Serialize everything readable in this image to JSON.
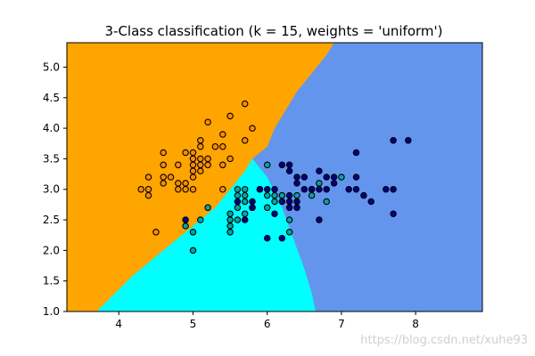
{
  "chart_data": {
    "type": "scatter",
    "title": "3-Class classification (k = 15, weights = 'uniform')",
    "xlabel": "",
    "ylabel": "",
    "xlim": [
      3.3,
      8.9
    ],
    "ylim": [
      1.0,
      5.4
    ],
    "xticks": [
      4,
      5,
      6,
      7,
      8
    ],
    "yticks": [
      1.0,
      1.5,
      2.0,
      2.5,
      3.0,
      3.5,
      4.0,
      4.5,
      5.0
    ],
    "ytick_labels": [
      "1.0",
      "1.5",
      "2.0",
      "2.5",
      "3.0",
      "3.5",
      "4.0",
      "4.5",
      "5.0"
    ],
    "grid": false,
    "background": "decision regions of three classes",
    "region_colors": [
      "#FFA500",
      "#00FFFF",
      "#6495ED"
    ],
    "point_colors": [
      "#FF8C00",
      "#00A7A7",
      "#00008B"
    ],
    "series": [
      {
        "region_color": "#FFA500",
        "point_color": "#FF8C00",
        "points": [
          [
            4.3,
            3.0
          ],
          [
            4.4,
            2.9
          ],
          [
            4.4,
            3.0
          ],
          [
            4.4,
            3.2
          ],
          [
            4.5,
            2.3
          ],
          [
            4.6,
            3.1
          ],
          [
            4.6,
            3.2
          ],
          [
            4.6,
            3.4
          ],
          [
            4.6,
            3.6
          ],
          [
            4.7,
            3.2
          ],
          [
            4.8,
            3.0
          ],
          [
            4.8,
            3.1
          ],
          [
            4.8,
            3.4
          ],
          [
            4.9,
            3.0
          ],
          [
            4.9,
            3.1
          ],
          [
            4.9,
            3.6
          ],
          [
            5.0,
            3.0
          ],
          [
            5.0,
            3.2
          ],
          [
            5.0,
            3.3
          ],
          [
            5.0,
            3.4
          ],
          [
            5.0,
            3.5
          ],
          [
            5.0,
            3.6
          ],
          [
            5.1,
            3.3
          ],
          [
            5.1,
            3.4
          ],
          [
            5.1,
            3.5
          ],
          [
            5.1,
            3.7
          ],
          [
            5.1,
            3.8
          ],
          [
            5.2,
            3.4
          ],
          [
            5.2,
            3.5
          ],
          [
            5.2,
            4.1
          ],
          [
            5.3,
            3.7
          ],
          [
            5.4,
            3.4
          ],
          [
            5.4,
            3.7
          ],
          [
            5.4,
            3.9
          ],
          [
            5.5,
            3.5
          ],
          [
            5.5,
            4.2
          ],
          [
            5.7,
            3.8
          ],
          [
            5.7,
            4.4
          ],
          [
            5.8,
            4.0
          ],
          [
            5.4,
            3.0
          ]
        ]
      },
      {
        "region_color": "#00FFFF",
        "point_color": "#00A7A7",
        "points": [
          [
            4.9,
            2.4
          ],
          [
            5.0,
            2.0
          ],
          [
            5.0,
            2.3
          ],
          [
            5.1,
            2.5
          ],
          [
            5.2,
            2.7
          ],
          [
            5.5,
            2.3
          ],
          [
            5.5,
            2.4
          ],
          [
            5.5,
            2.5
          ],
          [
            5.5,
            2.6
          ],
          [
            5.6,
            2.5
          ],
          [
            5.6,
            2.7
          ],
          [
            5.6,
            2.9
          ],
          [
            5.6,
            3.0
          ],
          [
            5.7,
            2.6
          ],
          [
            5.7,
            2.8
          ],
          [
            5.7,
            2.9
          ],
          [
            5.7,
            3.0
          ],
          [
            5.8,
            2.7
          ],
          [
            6.0,
            2.9
          ],
          [
            6.0,
            2.7
          ],
          [
            6.0,
            3.4
          ],
          [
            6.1,
            2.8
          ],
          [
            6.1,
            2.9
          ],
          [
            6.2,
            2.9
          ],
          [
            6.3,
            2.3
          ],
          [
            6.3,
            2.5
          ],
          [
            6.4,
            2.9
          ],
          [
            6.6,
            2.9
          ],
          [
            6.6,
            3.0
          ],
          [
            6.7,
            3.1
          ],
          [
            6.8,
            2.8
          ],
          [
            7.0,
            3.2
          ],
          [
            5.9,
            3.0
          ]
        ]
      },
      {
        "region_color": "#6495ED",
        "point_color": "#00008B",
        "points": [
          [
            4.9,
            2.5
          ],
          [
            5.6,
            2.8
          ],
          [
            5.7,
            2.5
          ],
          [
            5.8,
            2.7
          ],
          [
            5.8,
            2.8
          ],
          [
            5.9,
            3.0
          ],
          [
            6.0,
            2.2
          ],
          [
            6.0,
            3.0
          ],
          [
            6.1,
            3.0
          ],
          [
            6.1,
            2.6
          ],
          [
            6.2,
            2.2
          ],
          [
            6.2,
            2.8
          ],
          [
            6.2,
            3.4
          ],
          [
            6.3,
            2.7
          ],
          [
            6.3,
            2.8
          ],
          [
            6.3,
            2.9
          ],
          [
            6.3,
            3.3
          ],
          [
            6.3,
            3.4
          ],
          [
            6.4,
            2.7
          ],
          [
            6.4,
            2.8
          ],
          [
            6.4,
            3.1
          ],
          [
            6.4,
            3.2
          ],
          [
            6.5,
            3.0
          ],
          [
            6.5,
            3.2
          ],
          [
            6.6,
            3.0
          ],
          [
            6.7,
            2.5
          ],
          [
            6.7,
            3.0
          ],
          [
            6.7,
            3.3
          ],
          [
            6.8,
            3.0
          ],
          [
            6.8,
            3.2
          ],
          [
            6.9,
            3.1
          ],
          [
            6.9,
            3.2
          ],
          [
            7.1,
            3.0
          ],
          [
            7.2,
            3.0
          ],
          [
            7.2,
            3.2
          ],
          [
            7.2,
            3.6
          ],
          [
            7.3,
            2.9
          ],
          [
            7.4,
            2.8
          ],
          [
            7.6,
            3.0
          ],
          [
            7.7,
            2.6
          ],
          [
            7.7,
            3.0
          ],
          [
            7.7,
            3.8
          ],
          [
            7.9,
            3.8
          ]
        ]
      }
    ],
    "boundaries": {
      "orange_cyan": [
        [
          3.3,
          1.0
        ],
        [
          3.7,
          1.0
        ],
        [
          4.2,
          1.6
        ],
        [
          4.8,
          2.2
        ],
        [
          5.3,
          2.7
        ],
        [
          5.7,
          3.3
        ],
        [
          5.8,
          3.5
        ]
      ],
      "orange_blue": [
        [
          5.8,
          3.5
        ],
        [
          6.0,
          3.7
        ],
        [
          6.1,
          4.0
        ],
        [
          6.4,
          4.6
        ],
        [
          6.8,
          5.2
        ],
        [
          6.9,
          5.4
        ]
      ],
      "cyan_blue": [
        [
          5.8,
          3.5
        ],
        [
          6.0,
          3.2
        ],
        [
          6.2,
          2.7
        ],
        [
          6.35,
          2.2
        ],
        [
          6.5,
          1.7
        ],
        [
          6.6,
          1.3
        ],
        [
          6.65,
          1.0
        ]
      ]
    }
  },
  "watermark": "https://blog.csdn.net/xuhe93"
}
